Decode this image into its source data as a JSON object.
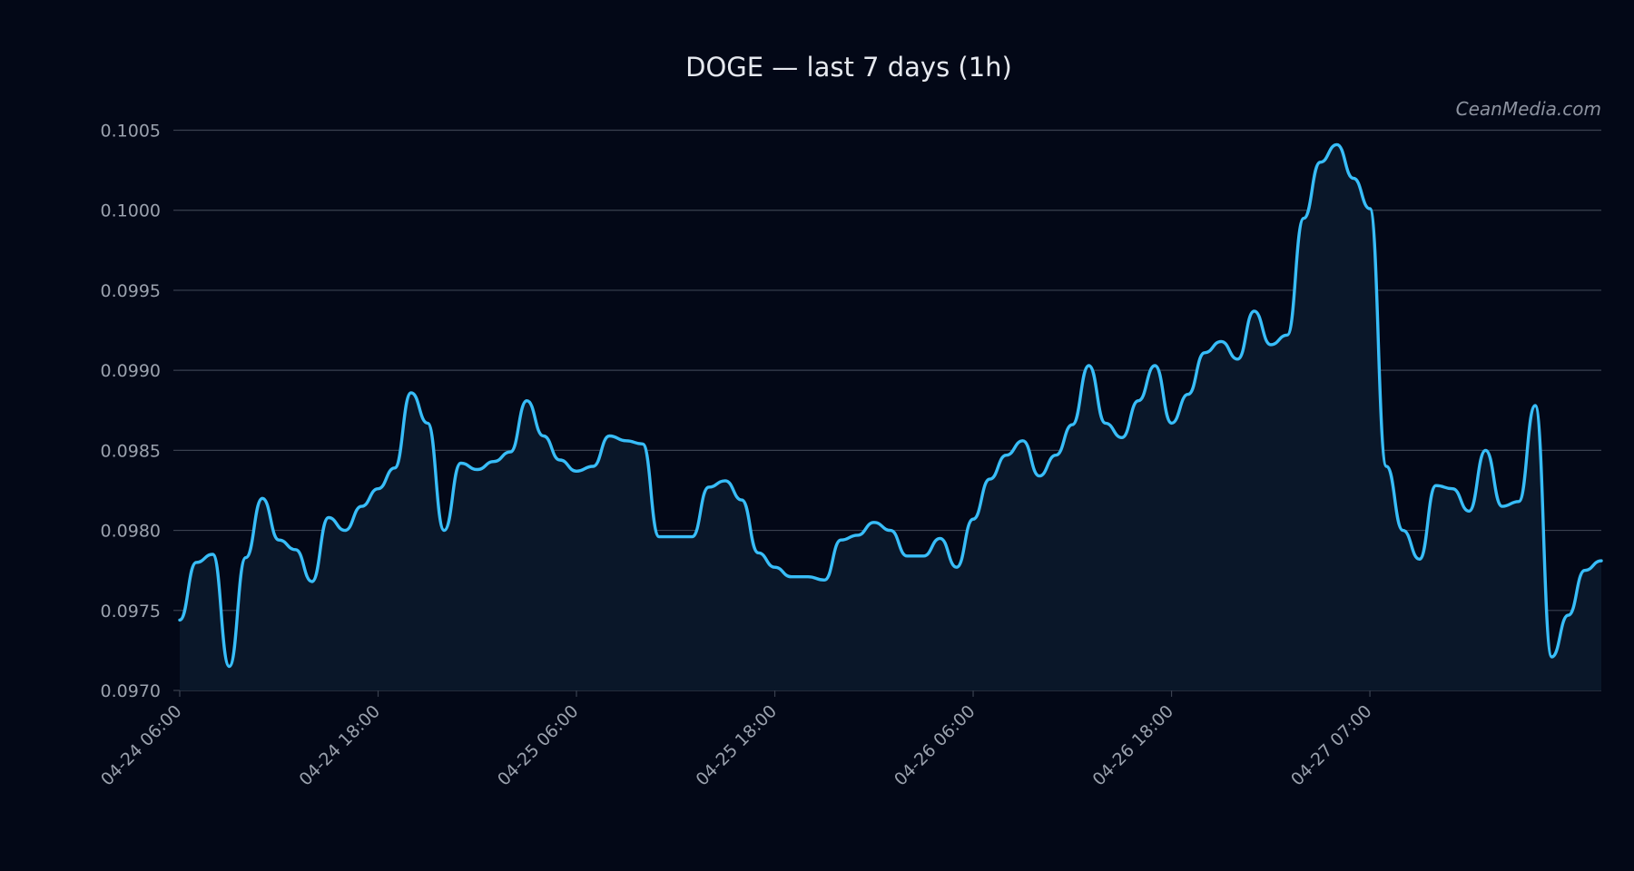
{
  "chart_data": {
    "type": "line",
    "title": "DOGE — last 7 days (1h)",
    "watermark": "CeanMedia.com",
    "xlabel": "",
    "ylabel": "",
    "ylim": [
      0.097,
      0.10052
    ],
    "yticks": [
      {
        "value": 0.097,
        "label": "0.0970"
      },
      {
        "value": 0.0975,
        "label": "0.0975"
      },
      {
        "value": 0.098,
        "label": "0.0980"
      },
      {
        "value": 0.0985,
        "label": "0.0985"
      },
      {
        "value": 0.099,
        "label": "0.0990"
      },
      {
        "value": 0.0995,
        "label": "0.0995"
      },
      {
        "value": 0.1,
        "label": "0.1000"
      },
      {
        "value": 0.1005,
        "label": "0.1005"
      }
    ],
    "xticks": [
      {
        "index": 0,
        "label": "04-24 06:00"
      },
      {
        "index": 12,
        "label": "04-24 18:00"
      },
      {
        "index": 24,
        "label": "04-25 06:00"
      },
      {
        "index": 36,
        "label": "04-25 18:00"
      },
      {
        "index": 48,
        "label": "04-26 06:00"
      },
      {
        "index": 60,
        "label": "04-26 18:00"
      },
      {
        "index": 72,
        "label": "04-27 07:00"
      }
    ],
    "grid": true,
    "colors": {
      "line": "#38bdf8",
      "area": "#0a1729",
      "background": "#030817"
    },
    "series": [
      {
        "values": [
          0.09744,
          0.0978,
          0.09785,
          0.09715,
          0.09783,
          0.0982,
          0.09794,
          0.09788,
          0.09768,
          0.09808,
          0.098,
          0.09815,
          0.09826,
          0.09839,
          0.09886,
          0.09867,
          0.098,
          0.09842,
          0.09838,
          0.09843,
          0.09849,
          0.09881,
          0.09859,
          0.09844,
          0.09837,
          0.0984,
          0.09859,
          0.09856,
          0.09854,
          0.09796,
          0.09796,
          0.09796,
          0.09827,
          0.09831,
          0.09819,
          0.09786,
          0.09777,
          0.09771,
          0.09771,
          0.09769,
          0.09794,
          0.09797,
          0.09805,
          0.098,
          0.09784,
          0.09784,
          0.09795,
          0.09777,
          0.09807,
          0.09832,
          0.09847,
          0.09856,
          0.09834,
          0.09847,
          0.09866,
          0.09903,
          0.09867,
          0.09858,
          0.09881,
          0.09903,
          0.09867,
          0.09885,
          0.09911,
          0.09918,
          0.09907,
          0.09937,
          0.09916,
          0.09922,
          0.09995,
          0.1003,
          0.10041,
          0.1002,
          0.10001,
          0.0984,
          0.098,
          0.09782,
          0.09828,
          0.09826,
          0.09812,
          0.0985,
          0.09815,
          0.09818,
          0.09878,
          0.09721,
          0.09747,
          0.09775,
          0.09781
        ]
      }
    ]
  }
}
